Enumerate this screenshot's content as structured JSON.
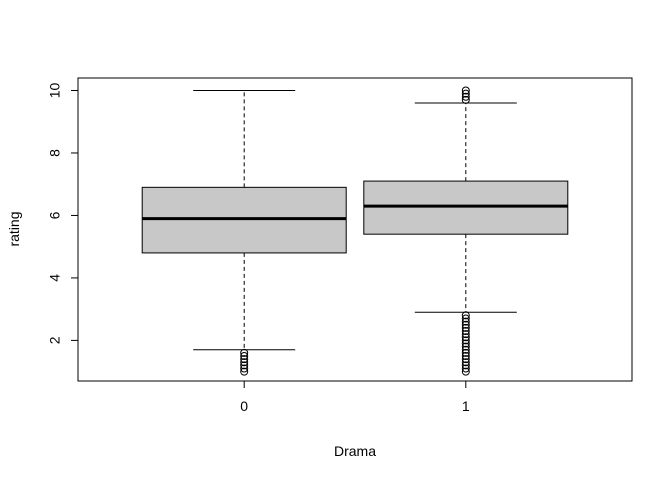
{
  "chart_data": {
    "type": "boxplot",
    "title": "",
    "xlabel": "Drama",
    "ylabel": "rating",
    "ylim": [
      0.7,
      10.4
    ],
    "yticks": [
      2,
      4,
      6,
      8,
      10
    ],
    "categories": [
      "0",
      "1"
    ],
    "box_fill": "#c8c8c8",
    "boxes": [
      {
        "category": "0",
        "whisker_low": 1.7,
        "q1": 4.8,
        "median": 5.9,
        "q3": 6.9,
        "whisker_high": 10.0,
        "outliers": [
          1.0,
          1.1,
          1.2,
          1.3,
          1.4,
          1.5,
          1.6
        ]
      },
      {
        "category": "1",
        "whisker_low": 2.9,
        "q1": 5.4,
        "median": 6.3,
        "q3": 7.1,
        "whisker_high": 9.6,
        "outliers": [
          1.0,
          1.1,
          1.2,
          1.3,
          1.4,
          1.5,
          1.6,
          1.7,
          1.8,
          1.9,
          2.0,
          2.1,
          2.2,
          2.3,
          2.4,
          2.5,
          2.6,
          2.7,
          2.8,
          9.7,
          9.8,
          9.9,
          10.0
        ]
      }
    ]
  }
}
